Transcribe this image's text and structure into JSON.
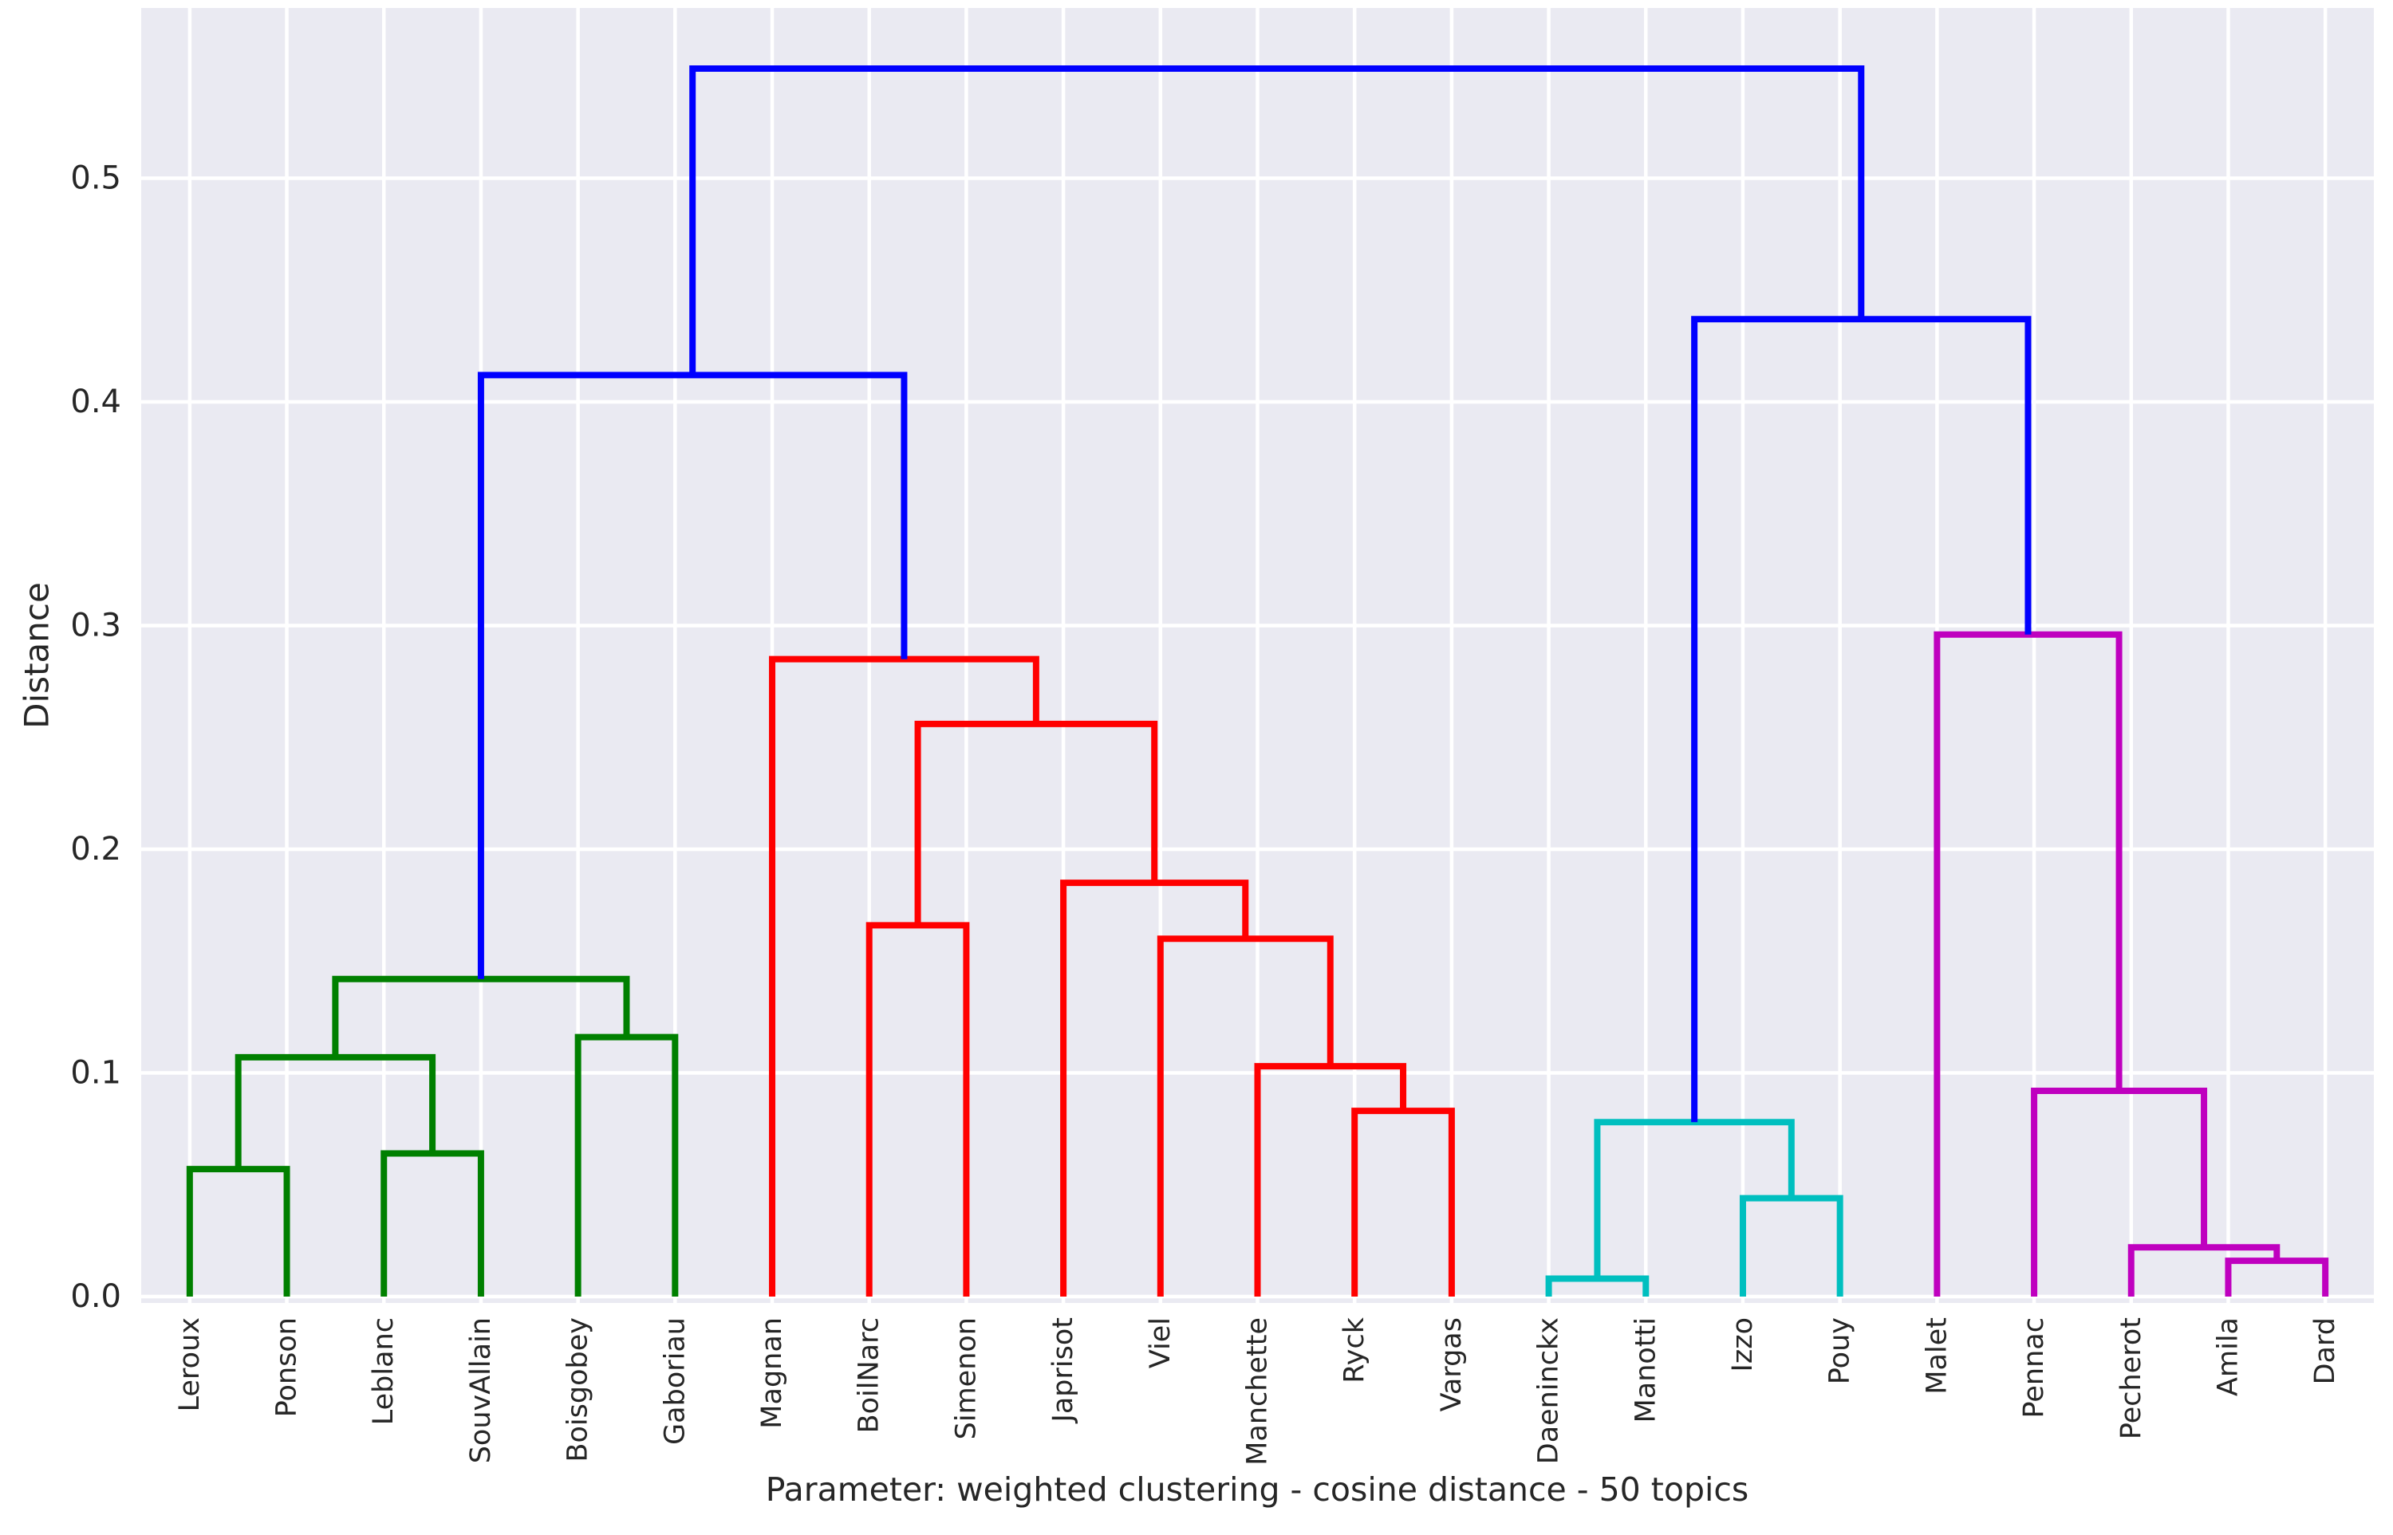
{
  "y_axis": {
    "label": "Distance",
    "ticks": [
      "0.0",
      "0.1",
      "0.2",
      "0.3",
      "0.4",
      "0.5"
    ]
  },
  "x_axis": {
    "caption": "Parameter: weighted clustering - cosine distance - 50 topics"
  },
  "chart_data": {
    "type": "dendrogram",
    "orientation": "top",
    "title": "",
    "ylabel": "Distance",
    "xlabel": "Parameter: weighted clustering - cosine distance - 50 topics",
    "ylim": [
      0,
      0.575
    ],
    "yticks": [
      0.0,
      0.1,
      0.2,
      0.3,
      0.4,
      0.5
    ],
    "grid": true,
    "plot_background": "#eaeaf2",
    "grid_color": "#ffffff",
    "text_color": "#262626",
    "leaves": [
      "Leroux",
      "Ponson",
      "Leblanc",
      "SouvAllain",
      "Boisgobey",
      "Gaboriau",
      "Magnan",
      "BoilNarc",
      "Simenon",
      "Japrisot",
      "Viel",
      "Manchette",
      "Ryck",
      "Vargas",
      "Daeninckx",
      "Manotti",
      "Izzo",
      "Pouy",
      "Malet",
      "Pennac",
      "Pecherot",
      "Amila",
      "Dard"
    ],
    "colors": {
      "green": "#008000",
      "red": "#ff0000",
      "cyan": "#00bfbf",
      "magenta": "#bf00bf",
      "blue": "#0000ff"
    },
    "merges": [
      {
        "id": "G1",
        "children": [
          "Leroux",
          "Ponson"
        ],
        "height": 0.057,
        "color": "green"
      },
      {
        "id": "G2",
        "children": [
          "Leblanc",
          "SouvAllain"
        ],
        "height": 0.064,
        "color": "green"
      },
      {
        "id": "G3",
        "children": [
          "G1",
          "G2"
        ],
        "height": 0.107,
        "color": "green"
      },
      {
        "id": "G4",
        "children": [
          "Boisgobey",
          "Gaboriau"
        ],
        "height": 0.116,
        "color": "green"
      },
      {
        "id": "G5",
        "children": [
          "G3",
          "G4"
        ],
        "height": 0.142,
        "color": "green"
      },
      {
        "id": "R1",
        "children": [
          "Ryck",
          "Vargas"
        ],
        "height": 0.083,
        "color": "red"
      },
      {
        "id": "R2",
        "children": [
          "Manchette",
          "R1"
        ],
        "height": 0.103,
        "color": "red"
      },
      {
        "id": "R3",
        "children": [
          "Viel",
          "R2"
        ],
        "height": 0.16,
        "color": "red"
      },
      {
        "id": "R4",
        "children": [
          "Japrisot",
          "R3"
        ],
        "height": 0.185,
        "color": "red"
      },
      {
        "id": "R5",
        "children": [
          "BoilNarc",
          "Simenon"
        ],
        "height": 0.166,
        "color": "red"
      },
      {
        "id": "R6",
        "children": [
          "R5",
          "R4"
        ],
        "height": 0.256,
        "color": "red"
      },
      {
        "id": "R7",
        "children": [
          "Magnan",
          "R6"
        ],
        "height": 0.285,
        "color": "red"
      },
      {
        "id": "C1",
        "children": [
          "Daeninckx",
          "Manotti"
        ],
        "height": 0.008,
        "color": "cyan"
      },
      {
        "id": "C2",
        "children": [
          "Izzo",
          "Pouy"
        ],
        "height": 0.044,
        "color": "cyan"
      },
      {
        "id": "C3",
        "children": [
          "C1",
          "C2"
        ],
        "height": 0.078,
        "color": "cyan"
      },
      {
        "id": "M1",
        "children": [
          "Amila",
          "Dard"
        ],
        "height": 0.016,
        "color": "magenta"
      },
      {
        "id": "M2",
        "children": [
          "Pecherot",
          "M1"
        ],
        "height": 0.022,
        "color": "magenta"
      },
      {
        "id": "M3",
        "children": [
          "Pennac",
          "M2"
        ],
        "height": 0.092,
        "color": "magenta"
      },
      {
        "id": "M4",
        "children": [
          "Malet",
          "M3"
        ],
        "height": 0.296,
        "color": "magenta"
      },
      {
        "id": "B1",
        "children": [
          "G5",
          "R7"
        ],
        "height": 0.412,
        "color": "blue"
      },
      {
        "id": "B2",
        "children": [
          "C3",
          "M4"
        ],
        "height": 0.437,
        "color": "blue"
      },
      {
        "id": "B3",
        "children": [
          "B1",
          "B2"
        ],
        "height": 0.549,
        "color": "blue"
      }
    ]
  }
}
